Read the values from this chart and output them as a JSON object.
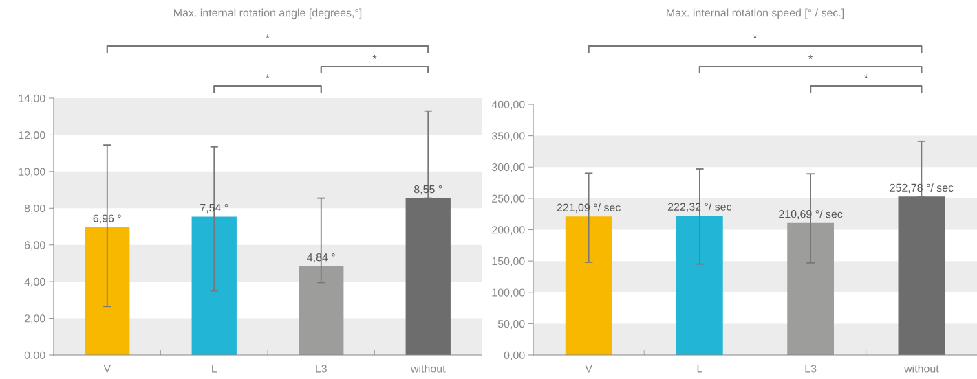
{
  "chart_data": [
    {
      "type": "bar",
      "title": "Max. internal rotation angle [degrees,°]",
      "categories": [
        "V",
        "L",
        "L3",
        "without"
      ],
      "values": [
        6.96,
        7.54,
        4.84,
        8.55
      ],
      "colors": [
        "#f9b800",
        "#22b5d6",
        "#9d9d9b",
        "#6d6d6d"
      ],
      "errors": [
        [
          2.65,
          11.45
        ],
        [
          3.5,
          11.35
        ],
        [
          3.95,
          8.55
        ],
        [
          8.55,
          13.3
        ]
      ],
      "value_labels": [
        "6,96 °",
        "7,54 °",
        "4,84 °",
        "8,55 °"
      ],
      "ylim": [
        0,
        14
      ],
      "yticks": [
        {
          "value": 0,
          "label": "0,00"
        },
        {
          "value": 2,
          "label": "2,00"
        },
        {
          "value": 4,
          "label": "4,00"
        },
        {
          "value": 6,
          "label": "6,00"
        },
        {
          "value": 8,
          "label": "8,00"
        },
        {
          "value": 10,
          "label": "10,00"
        },
        {
          "value": 12,
          "label": "12,00"
        },
        {
          "value": 14,
          "label": "14,00"
        }
      ],
      "bands": [
        {
          "axis": "y",
          "from": 0,
          "to": 2,
          "color": "#ececec"
        },
        {
          "axis": "y",
          "from": 4,
          "to": 6,
          "color": "#ececec"
        },
        {
          "axis": "y",
          "from": 8,
          "to": 10,
          "color": "#ececec"
        },
        {
          "axis": "y",
          "from": 12,
          "to": 14,
          "color": "#ececec"
        }
      ],
      "annotations": [
        "*",
        "*",
        "*"
      ],
      "grid": false,
      "legend": false
    },
    {
      "type": "bar",
      "title": "Max. internal rotation speed [° / sec.]",
      "categories": [
        "V",
        "L",
        "L3",
        "without"
      ],
      "values": [
        221.09,
        222.32,
        210.69,
        252.78
      ],
      "colors": [
        "#f9b800",
        "#22b5d6",
        "#9d9d9b",
        "#6d6d6d"
      ],
      "errors": [
        [
          148,
          290
        ],
        [
          145,
          297
        ],
        [
          147,
          289
        ],
        [
          252.78,
          341
        ]
      ],
      "value_labels": [
        "221,09 °/ sec",
        "222,32 °/ sec",
        "210,69 °/ sec",
        "252,78 °/ sec"
      ],
      "ylim": [
        0,
        400
      ],
      "yticks": [
        {
          "value": 0,
          "label": "0,00"
        },
        {
          "value": 50,
          "label": "50,00"
        },
        {
          "value": 100,
          "label": "100,00"
        },
        {
          "value": 150,
          "label": "150,00"
        },
        {
          "value": 200,
          "label": "200,00"
        },
        {
          "value": 250,
          "label": "250,00"
        },
        {
          "value": 300,
          "label": "300,00"
        },
        {
          "value": 350,
          "label": "350,00"
        },
        {
          "value": 400,
          "label": "400,00"
        }
      ],
      "bands": [
        {
          "axis": "y",
          "from": 0,
          "to": 50,
          "color": "#ececec"
        },
        {
          "axis": "y",
          "from": 100,
          "to": 150,
          "color": "#ececec"
        },
        {
          "axis": "y",
          "from": 200,
          "to": 250,
          "color": "#ececec"
        },
        {
          "axis": "y",
          "from": 300,
          "to": 350,
          "color": "#ececec"
        }
      ],
      "annotations": [
        "*",
        "*",
        "*"
      ],
      "grid": false,
      "legend": false
    }
  ]
}
